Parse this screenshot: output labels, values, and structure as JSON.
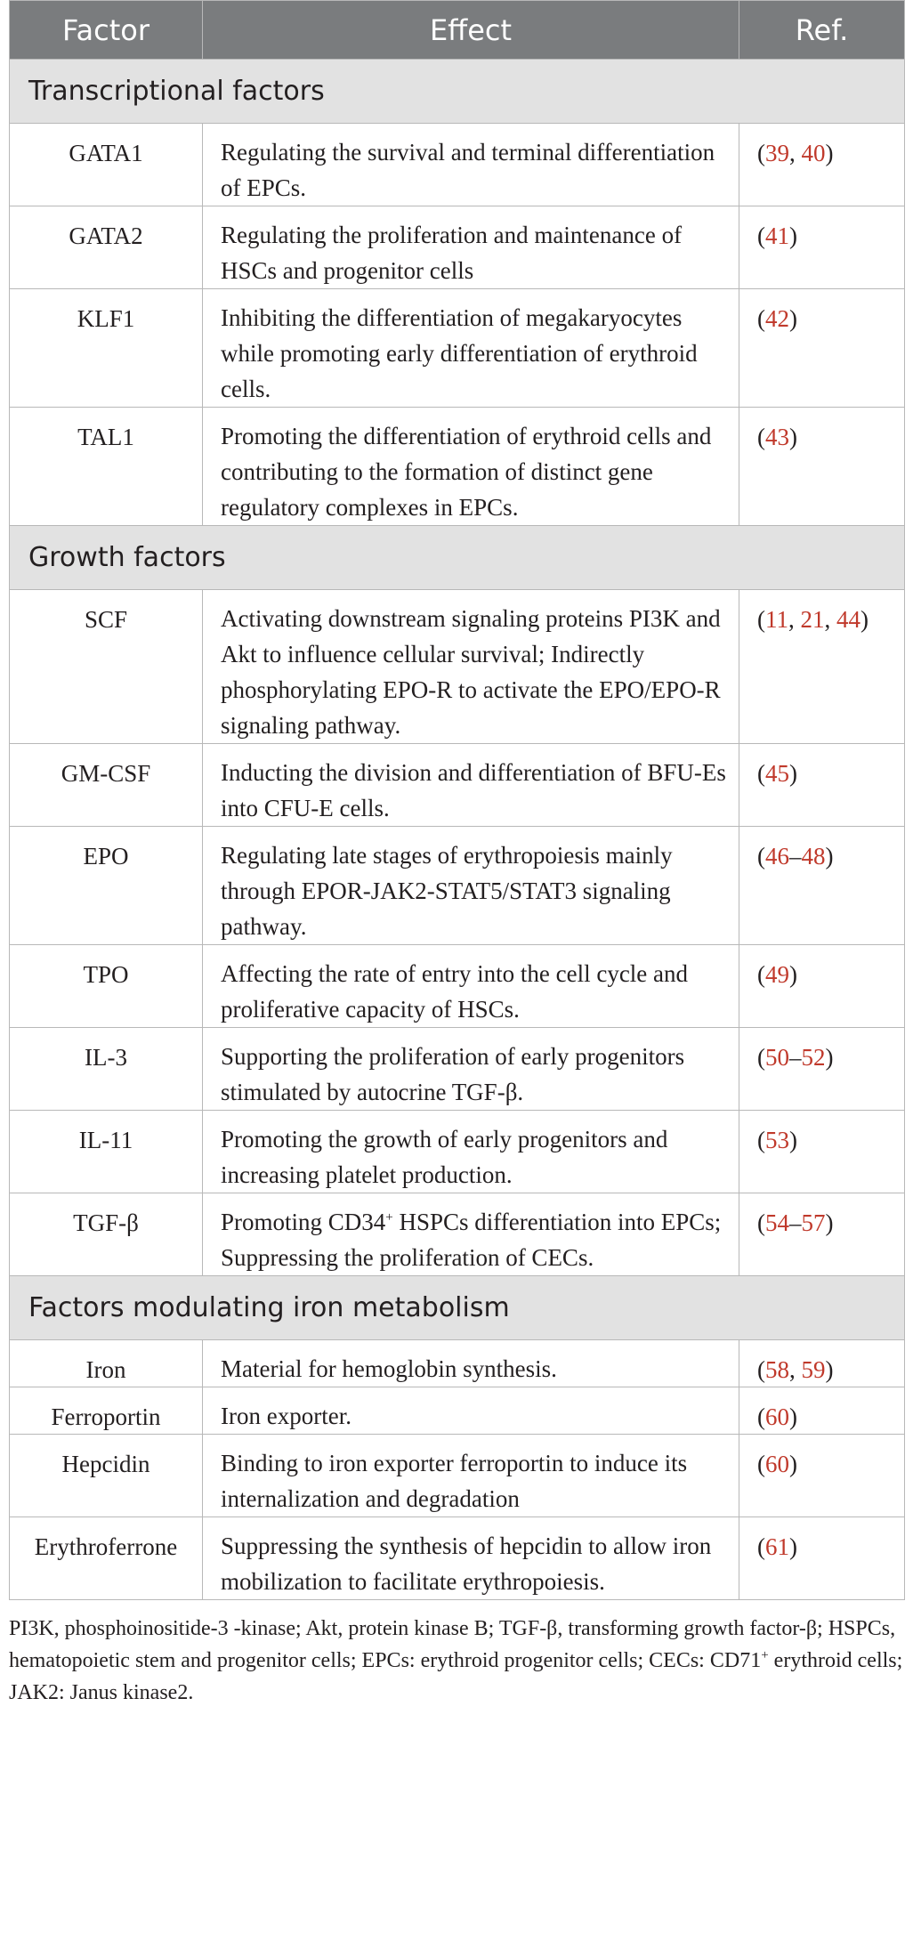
{
  "headers": {
    "factor": "Factor",
    "effect": "Effect",
    "ref": "Ref."
  },
  "sections": [
    {
      "title": "Transcriptional factors",
      "rows": [
        {
          "factor": "GATA1",
          "effect": "Regulating the survival and terminal differentiation of EPCs.",
          "refs": [
            "39",
            "40"
          ],
          "ref_style": "list"
        },
        {
          "factor": "GATA2",
          "effect": "Regulating the proliferation and maintenance of HSCs and progenitor cells",
          "refs": [
            "41"
          ],
          "ref_style": "list"
        },
        {
          "factor": "KLF1",
          "effect": "Inhibiting the differentiation of megakaryocytes while promoting early differentiation of erythroid cells.",
          "refs": [
            "42"
          ],
          "ref_style": "list"
        },
        {
          "factor": "TAL1",
          "effect": "Promoting the differentiation of erythroid cells and contributing to the formation of distinct gene regulatory complexes in EPCs.",
          "refs": [
            "43"
          ],
          "ref_style": "list"
        }
      ]
    },
    {
      "title": "Growth factors",
      "rows": [
        {
          "factor": "SCF",
          "effect": "Activating downstream signaling proteins PI3K and Akt to influence cellular survival; Indirectly phosphorylating EPO-R to activate the EPO/EPO-R signaling pathway.",
          "refs": [
            "11",
            "21",
            "44"
          ],
          "ref_style": "list"
        },
        {
          "factor": "GM-CSF",
          "effect": "Inducting the division and differentiation of BFU-Es into CFU-E cells.",
          "refs": [
            "45"
          ],
          "ref_style": "list"
        },
        {
          "factor": "EPO",
          "effect": "Regulating late stages of erythropoiesis mainly through EPOR-JAK2-STAT5/STAT3 signaling pathway.",
          "refs": [
            "46",
            "48"
          ],
          "ref_style": "range"
        },
        {
          "factor": "TPO",
          "effect": "Affecting the rate of entry into the cell cycle and proliferative capacity of HSCs.",
          "refs": [
            "49"
          ],
          "ref_style": "list"
        },
        {
          "factor": "IL-3",
          "effect": "Supporting the proliferation of early progenitors stimulated by autocrine TGF-β.",
          "refs": [
            "50",
            "52"
          ],
          "ref_style": "range"
        },
        {
          "factor": "IL-11",
          "effect": "Promoting the growth of early progenitors and increasing platelet production.",
          "refs": [
            "53"
          ],
          "ref_style": "list"
        },
        {
          "factor": "TGF-β",
          "effect_parts": [
            "Promoting CD34",
            "+",
            " HSPCs differentiation into EPCs; Suppressing the proliferation of CECs."
          ],
          "refs": [
            "54",
            "57"
          ],
          "ref_style": "range"
        }
      ]
    },
    {
      "title": "Factors modulating iron metabolism",
      "rows": [
        {
          "factor": "Iron",
          "effect": "Material for hemoglobin synthesis.",
          "refs": [
            "58",
            "59"
          ],
          "ref_style": "list"
        },
        {
          "factor": "Ferroportin",
          "effect": "Iron exporter.",
          "refs": [
            "60"
          ],
          "ref_style": "list"
        },
        {
          "factor": "Hepcidin",
          "effect": "Binding to iron exporter ferroportin to induce its internalization and degradation",
          "refs": [
            "60"
          ],
          "ref_style": "list"
        },
        {
          "factor": "Erythroferrone",
          "effect": "Suppressing the synthesis of hepcidin to allow iron mobilization to facilitate erythropoiesis.",
          "refs": [
            "61"
          ],
          "ref_style": "list"
        }
      ]
    }
  ],
  "footnote_parts": [
    "PI3K, phosphoinositide-3 -kinase; Akt, protein kinase B; TGF-β, transforming growth factor-β; HSPCs, hematopoietic stem and progenitor cells; EPCs: erythroid progenitor cells; CECs: CD71",
    "+",
    " erythroid cells; JAK2: Janus kinase2."
  ],
  "colors": {
    "header_bg": "#7a7c7e",
    "section_bg": "#e2e2e2",
    "ref_link": "#c0392b",
    "text": "#231f20"
  }
}
